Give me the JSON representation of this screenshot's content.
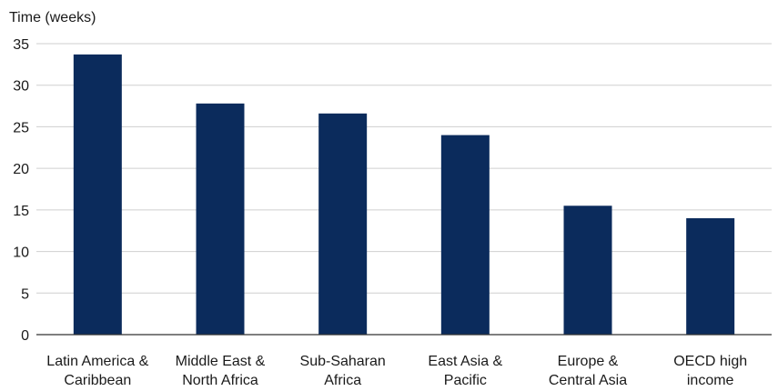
{
  "chart_data": {
    "type": "bar",
    "ylabel": "Time (weeks)",
    "xlabel": "",
    "ylim": [
      0,
      35
    ],
    "yticks": [
      0,
      5,
      10,
      15,
      20,
      25,
      30,
      35
    ],
    "grid": true,
    "categories": [
      [
        "Latin America &",
        "Caribbean"
      ],
      [
        "Middle East &",
        "North Africa"
      ],
      [
        "Sub-Saharan",
        "Africa"
      ],
      [
        "East Asia &",
        "Pacific"
      ],
      [
        "Europe &",
        "Central Asia"
      ],
      [
        "OECD high",
        "income"
      ]
    ],
    "values": [
      33.7,
      27.8,
      26.6,
      24.0,
      15.5,
      14.0
    ],
    "bar_color": "#0b2b5c",
    "grid_color": "#cfcfcf",
    "axis_color": "#333333"
  }
}
